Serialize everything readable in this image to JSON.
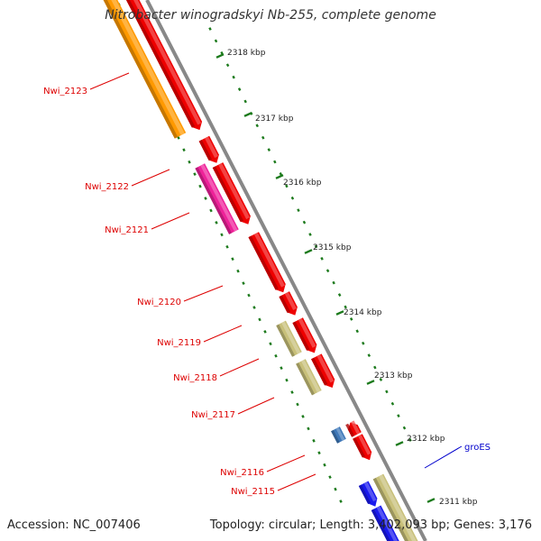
{
  "title": "Nitrobacter winogradskyi Nb-255, complete genome",
  "footer": {
    "accession": "Accession: NC_007406",
    "summary": "Topology: circular; Length: 3,402,093 bp; Genes: 3,176"
  },
  "colors": {
    "backbone": "#888888",
    "tick": "#1c7a1c",
    "label_red": "#dd0000",
    "label_blue": "#0000cc",
    "red": "#ee0000",
    "orange": "#ff9900",
    "magenta": "#ee2299",
    "khaki": "#c8c07a",
    "blue": "#1a1aee",
    "steel": "#3f78b8"
  },
  "scale_labels": [
    "2318 kbp",
    "2317 kbp",
    "2316 kbp",
    "2315 kbp",
    "2314 kbp",
    "2313 kbp",
    "2312 kbp",
    "2311 kbp"
  ],
  "gene_labels": [
    {
      "text": "Nwi_2123",
      "color": "red"
    },
    {
      "text": "Nwi_2122",
      "color": "red"
    },
    {
      "text": "Nwi_2121",
      "color": "red"
    },
    {
      "text": "Nwi_2120",
      "color": "red"
    },
    {
      "text": "Nwi_2119",
      "color": "red"
    },
    {
      "text": "Nwi_2118",
      "color": "red"
    },
    {
      "text": "Nwi_2117",
      "color": "red"
    },
    {
      "text": "Nwi_2116",
      "color": "red"
    },
    {
      "text": "Nwi_2115",
      "color": "red"
    },
    {
      "text": "groES",
      "color": "blue"
    }
  ]
}
